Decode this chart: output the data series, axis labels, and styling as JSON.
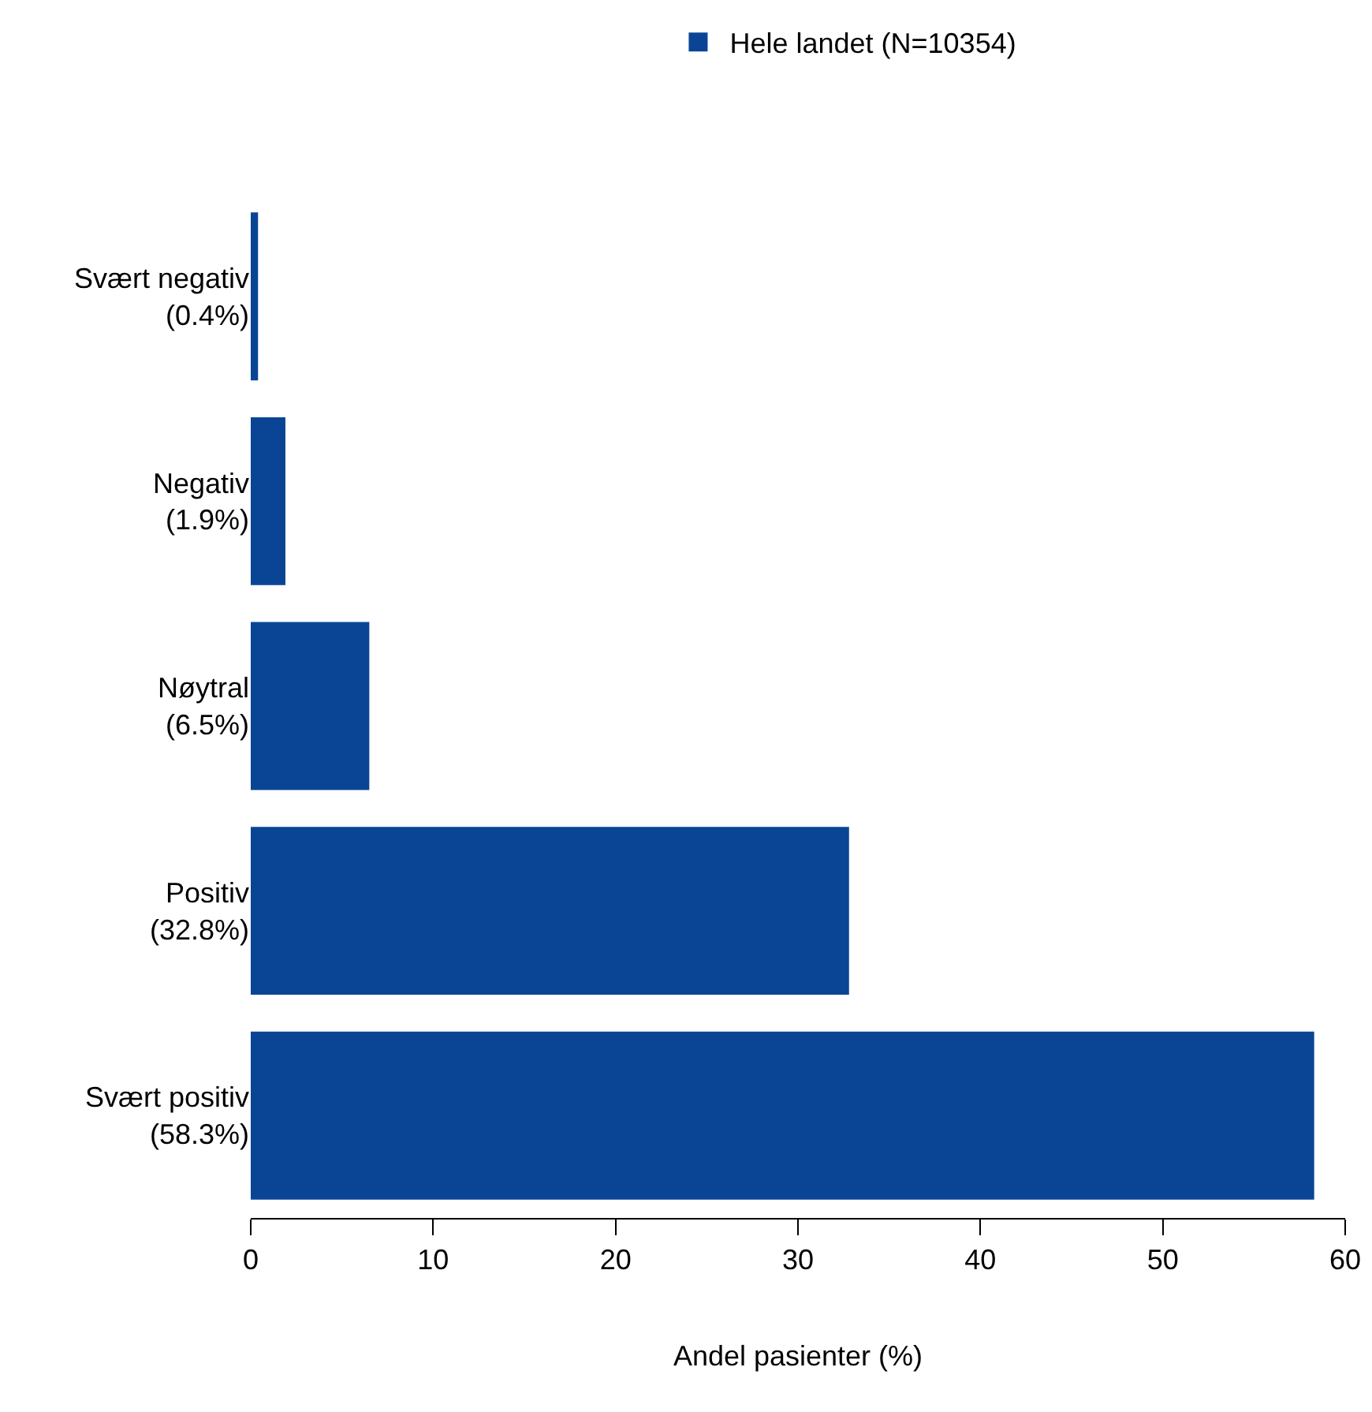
{
  "chart_data": {
    "type": "bar",
    "orientation": "horizontal",
    "categories": [
      "Svært negativ\n(0.4%)",
      "Negativ\n(1.9%)",
      "Nøytral\n(6.5%)",
      "Positiv\n(32.8%)",
      "Svært positiv\n(58.3%)"
    ],
    "series": [
      {
        "name": "Hele landet (N=10354)",
        "color": "#0a4595",
        "values": [
          0.4,
          1.9,
          6.5,
          32.8,
          58.3
        ]
      }
    ],
    "xlabel": "Andel pasienter (%)",
    "xlim": [
      0,
      60
    ],
    "xticks": [
      0,
      10,
      20,
      30,
      40,
      50,
      60
    ],
    "legend": "top"
  }
}
